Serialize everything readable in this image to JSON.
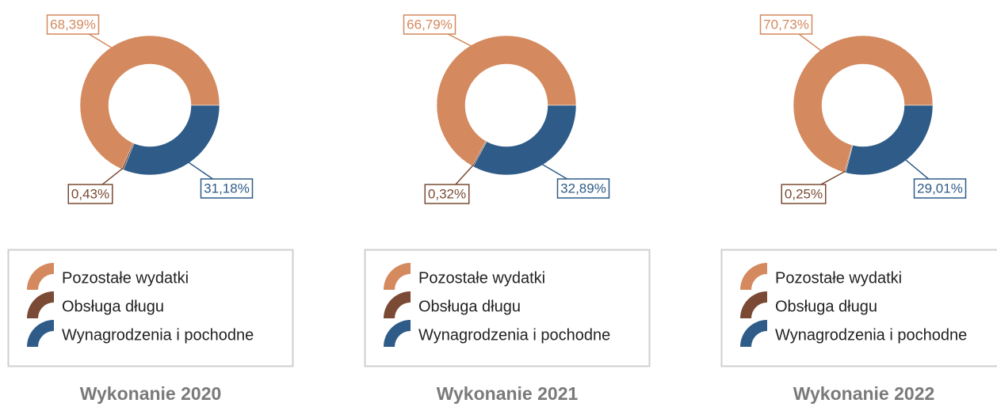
{
  "chart_data": [
    {
      "type": "pie",
      "title": "Wykonanie 2020",
      "categories": [
        "Pozostałe wydatki",
        "Obsługa długu",
        "Wynagrodzenia i pochodne"
      ],
      "values": [
        68.39,
        0.43,
        31.18
      ],
      "value_labels": [
        "68,39%",
        "0,43%",
        "31,18%"
      ],
      "colors": [
        "#d4895e",
        "#7a4a34",
        "#2e5b87"
      ]
    },
    {
      "type": "pie",
      "title": "Wykonanie 2021",
      "categories": [
        "Pozostałe wydatki",
        "Obsługa długu",
        "Wynagrodzenia i pochodne"
      ],
      "values": [
        66.79,
        0.32,
        32.89
      ],
      "value_labels": [
        "66,79%",
        "0,32%",
        "32,89%"
      ],
      "colors": [
        "#d4895e",
        "#7a4a34",
        "#2e5b87"
      ]
    },
    {
      "type": "pie",
      "title": "Wykonanie 2022",
      "categories": [
        "Pozostałe wydatki",
        "Obsługa długu",
        "Wynagrodzenia i pochodne"
      ],
      "values": [
        70.73,
        0.25,
        29.01
      ],
      "value_labels": [
        "70,73%",
        "0,25%",
        "29,01%"
      ],
      "colors": [
        "#d4895e",
        "#7a4a34",
        "#2e5b87"
      ]
    }
  ]
}
